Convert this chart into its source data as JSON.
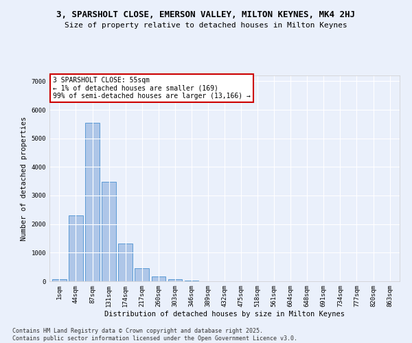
{
  "title1": "3, SPARSHOLT CLOSE, EMERSON VALLEY, MILTON KEYNES, MK4 2HJ",
  "title2": "Size of property relative to detached houses in Milton Keynes",
  "xlabel": "Distribution of detached houses by size in Milton Keynes",
  "ylabel": "Number of detached properties",
  "bar_color": "#aec6e8",
  "bar_edge_color": "#5b9bd5",
  "background_color": "#eaf0fb",
  "grid_color": "#ffffff",
  "categories": [
    "1sqm",
    "44sqm",
    "87sqm",
    "131sqm",
    "174sqm",
    "217sqm",
    "260sqm",
    "303sqm",
    "346sqm",
    "389sqm",
    "432sqm",
    "475sqm",
    "518sqm",
    "561sqm",
    "604sqm",
    "648sqm",
    "691sqm",
    "734sqm",
    "777sqm",
    "820sqm",
    "863sqm"
  ],
  "values": [
    80,
    2300,
    5550,
    3470,
    1320,
    460,
    170,
    80,
    30,
    5,
    0,
    0,
    0,
    0,
    0,
    0,
    0,
    0,
    0,
    0,
    0
  ],
  "annotation_text": "3 SPARSHOLT CLOSE: 55sqm\n← 1% of detached houses are smaller (169)\n99% of semi-detached houses are larger (13,166) →",
  "annotation_box_color": "#ffffff",
  "annotation_border_color": "#cc0000",
  "ylim": [
    0,
    7200
  ],
  "yticks": [
    0,
    1000,
    2000,
    3000,
    4000,
    5000,
    6000,
    7000
  ],
  "footer1": "Contains HM Land Registry data © Crown copyright and database right 2025.",
  "footer2": "Contains public sector information licensed under the Open Government Licence v3.0.",
  "title1_fontsize": 9,
  "title2_fontsize": 8,
  "axis_label_fontsize": 7.5,
  "tick_fontsize": 6.5,
  "annotation_fontsize": 7,
  "footer_fontsize": 6
}
